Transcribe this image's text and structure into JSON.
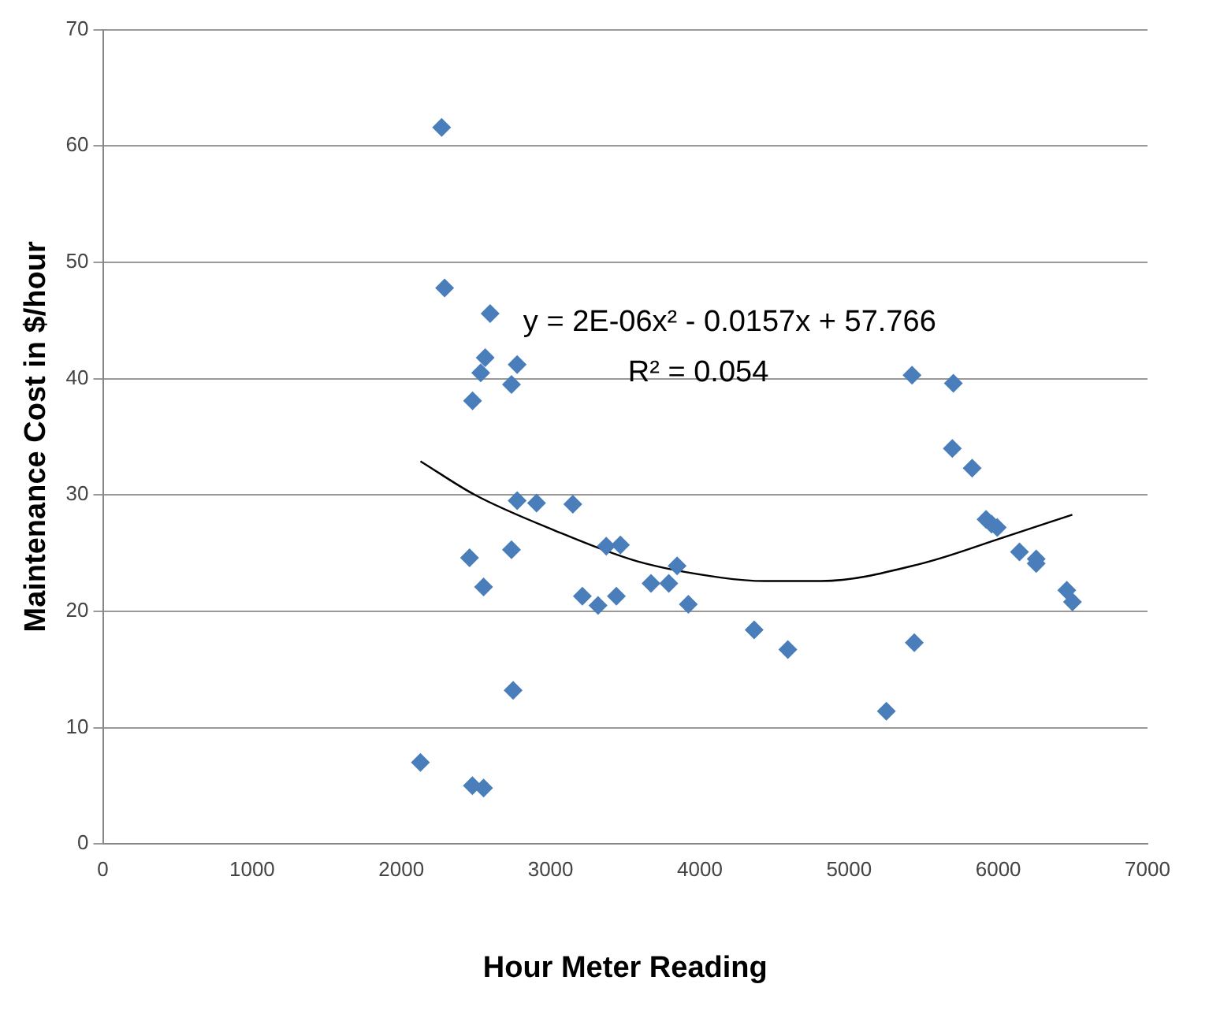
{
  "chart_data": {
    "type": "scatter",
    "xlabel": "Hour Meter Reading",
    "ylabel": "Maintenance Cost in $/hour",
    "xlim": [
      0,
      7000
    ],
    "xticks": [
      0,
      1000,
      2000,
      3000,
      4000,
      5000,
      6000,
      7000
    ],
    "ylim": [
      0,
      70
    ],
    "yticks": [
      0,
      10,
      20,
      30,
      40,
      50,
      60,
      70
    ],
    "grid": "y",
    "marker": "diamond",
    "legend": false,
    "annotations": [
      "y = 2E-06x² - 0.0157x + 57.766",
      "R² = 0.054"
    ],
    "series": [
      {
        "color": "#4a7ebb",
        "x": [
          2270,
          2290,
          2595,
          2562,
          2532,
          2776,
          2738,
          2477,
          2776,
          2906,
          3149,
          2457,
          2738,
          2551,
          3373,
          3468,
          3213,
          3318,
          3441,
          3673,
          3792,
          3848,
          3923,
          4364,
          4590,
          2749,
          2128,
          2476,
          2551,
          5422,
          5699,
          5692,
          5825,
          5918,
          5993,
          5955,
          6142,
          6254,
          6254,
          6459,
          6497,
          5437,
          5250
        ],
        "values": [
          61.6,
          47.8,
          45.6,
          41.8,
          40.5,
          41.2,
          39.5,
          38.1,
          29.5,
          29.3,
          29.2,
          24.6,
          25.3,
          22.1,
          25.6,
          25.7,
          21.3,
          20.5,
          21.3,
          22.4,
          22.4,
          23.9,
          20.6,
          18.4,
          16.7,
          13.2,
          7.0,
          5.0,
          4.8,
          40.3,
          39.6,
          34.0,
          32.3,
          27.9,
          27.2,
          27.5,
          25.1,
          24.5,
          24.1,
          21.8,
          20.8,
          17.3,
          11.4
        ]
      },
      {
        "type": "line",
        "color": "#000000",
        "marker": "none",
        "x": [
          2128,
          2494,
          3018,
          3579,
          4140,
          4439,
          4813,
          5486,
          6047,
          6496
        ],
        "values": [
          32.9,
          30.0,
          27.0,
          24.3,
          22.9,
          22.6,
          22.6,
          24.1,
          26.4,
          28.3
        ]
      }
    ]
  }
}
